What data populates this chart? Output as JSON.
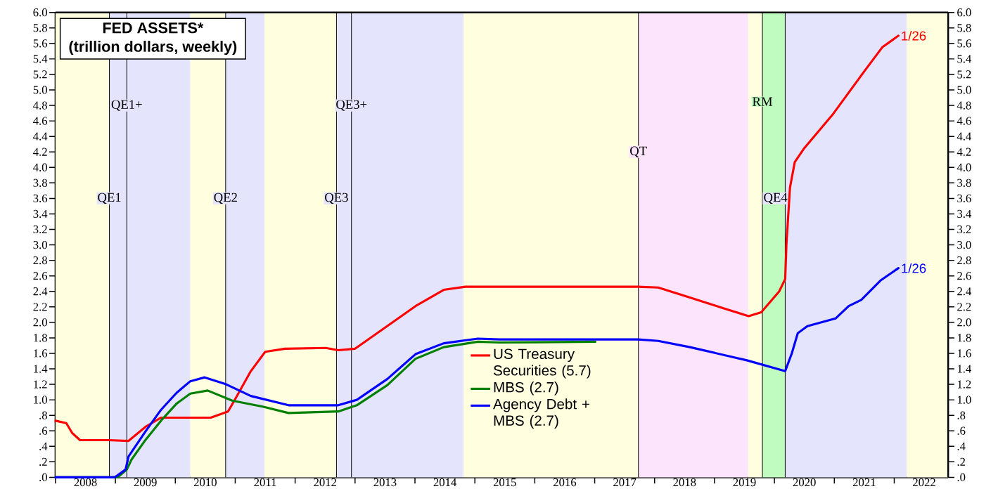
{
  "chart_data": {
    "type": "line",
    "title": "FED ASSETS*",
    "subtitle": "(trillion dollars, weekly)",
    "xlim": [
      2008,
      2022.9
    ],
    "xticks": [
      {
        "value": 2008,
        "label": null
      },
      {
        "value": 2008.5,
        "label": "2008"
      },
      {
        "value": 2009,
        "label": null
      },
      {
        "value": 2009.5,
        "label": "2009"
      },
      {
        "value": 2010,
        "label": null
      },
      {
        "value": 2010.5,
        "label": "2010"
      },
      {
        "value": 2011,
        "label": null
      },
      {
        "value": 2011.5,
        "label": "2011"
      },
      {
        "value": 2012,
        "label": null
      },
      {
        "value": 2012.5,
        "label": "2012"
      },
      {
        "value": 2013,
        "label": null
      },
      {
        "value": 2013.5,
        "label": "2013"
      },
      {
        "value": 2014,
        "label": null
      },
      {
        "value": 2014.5,
        "label": "2014"
      },
      {
        "value": 2015,
        "label": null
      },
      {
        "value": 2015.5,
        "label": "2015"
      },
      {
        "value": 2016,
        "label": null
      },
      {
        "value": 2016.5,
        "label": "2016"
      },
      {
        "value": 2017,
        "label": null
      },
      {
        "value": 2017.5,
        "label": "2017"
      },
      {
        "value": 2018,
        "label": null
      },
      {
        "value": 2018.5,
        "label": "2018"
      },
      {
        "value": 2019,
        "label": null
      },
      {
        "value": 2019.5,
        "label": "2019"
      },
      {
        "value": 2020,
        "label": null
      },
      {
        "value": 2020.5,
        "label": "2020"
      },
      {
        "value": 2021,
        "label": null
      },
      {
        "value": 2021.5,
        "label": "2021"
      },
      {
        "value": 2022,
        "label": null
      },
      {
        "value": 2022.5,
        "label": "2022"
      }
    ],
    "ylim": [
      0,
      6
    ],
    "yticks": [
      {
        "value": 0,
        "label": ".0"
      },
      {
        "value": 0.2,
        "label": ".2"
      },
      {
        "value": 0.4,
        "label": ".4"
      },
      {
        "value": 0.6,
        "label": ".6"
      },
      {
        "value": 0.8,
        "label": ".8"
      },
      {
        "value": 1.0,
        "label": "1.0"
      },
      {
        "value": 1.2,
        "label": "1.2"
      },
      {
        "value": 1.4,
        "label": "1.4"
      },
      {
        "value": 1.6,
        "label": "1.6"
      },
      {
        "value": 1.8,
        "label": "1.8"
      },
      {
        "value": 2.0,
        "label": "2.0"
      },
      {
        "value": 2.2,
        "label": "2.2"
      },
      {
        "value": 2.4,
        "label": "2.4"
      },
      {
        "value": 2.6,
        "label": "2.6"
      },
      {
        "value": 2.8,
        "label": "2.8"
      },
      {
        "value": 3.0,
        "label": "3.0"
      },
      {
        "value": 3.2,
        "label": "3.2"
      },
      {
        "value": 3.4,
        "label": "3.4"
      },
      {
        "value": 3.6,
        "label": "3.6"
      },
      {
        "value": 3.8,
        "label": "3.8"
      },
      {
        "value": 4.0,
        "label": "4.0"
      },
      {
        "value": 4.2,
        "label": "4.2"
      },
      {
        "value": 4.4,
        "label": "4.4"
      },
      {
        "value": 4.6,
        "label": "4.6"
      },
      {
        "value": 4.8,
        "label": "4.8"
      },
      {
        "value": 5.0,
        "label": "5.0"
      },
      {
        "value": 5.2,
        "label": "5.2"
      },
      {
        "value": 5.4,
        "label": "5.4"
      },
      {
        "value": 5.6,
        "label": "5.6"
      },
      {
        "value": 5.8,
        "label": "5.8"
      },
      {
        "value": 6.0,
        "label": "6.0"
      }
    ],
    "y2lim": [
      0,
      6
    ],
    "y2ticks": [
      {
        "value": 0,
        "label": ".0"
      },
      {
        "value": 0.2,
        "label": ".2"
      },
      {
        "value": 0.4,
        "label": ".4"
      },
      {
        "value": 0.6,
        "label": ".6"
      },
      {
        "value": 0.8,
        "label": ".8"
      },
      {
        "value": 1.0,
        "label": "1.0"
      },
      {
        "value": 1.2,
        "label": "1.2"
      },
      {
        "value": 1.4,
        "label": "1.4"
      },
      {
        "value": 1.6,
        "label": "1.6"
      },
      {
        "value": 1.8,
        "label": "1.8"
      },
      {
        "value": 2.0,
        "label": "2.0"
      },
      {
        "value": 2.2,
        "label": "2.2"
      },
      {
        "value": 2.4,
        "label": "2.4"
      },
      {
        "value": 2.6,
        "label": "2.6"
      },
      {
        "value": 2.8,
        "label": "2.8"
      },
      {
        "value": 3.0,
        "label": "3.0"
      },
      {
        "value": 3.2,
        "label": "3.2"
      },
      {
        "value": 3.4,
        "label": "3.4"
      },
      {
        "value": 3.6,
        "label": "3.6"
      },
      {
        "value": 3.8,
        "label": "3.8"
      },
      {
        "value": 4.0,
        "label": "4.0"
      },
      {
        "value": 4.2,
        "label": "4.2"
      },
      {
        "value": 4.4,
        "label": "4.4"
      },
      {
        "value": 4.6,
        "label": "4.6"
      },
      {
        "value": 4.8,
        "label": "4.8"
      },
      {
        "value": 5.0,
        "label": "5.0"
      },
      {
        "value": 5.2,
        "label": "5.2"
      },
      {
        "value": 5.4,
        "label": "5.4"
      },
      {
        "value": 5.6,
        "label": "5.6"
      },
      {
        "value": 5.8,
        "label": "5.8"
      },
      {
        "value": 6.0,
        "label": "6.0"
      }
    ],
    "grid": false,
    "legend": "bottom",
    "marker": "none",
    "line_style": "solid",
    "series": [
      {
        "name": "US Treasury Securities (5.7)",
        "color": "#ff0000",
        "x": [
          2008.0,
          2008.18,
          2008.28,
          2008.41,
          2008.88,
          2009.22,
          2009.5,
          2009.76,
          2010.59,
          2010.88,
          2011.0,
          2011.26,
          2011.5,
          2011.83,
          2012.51,
          2012.72,
          2013.0,
          2014.01,
          2014.48,
          2014.84,
          2017.72,
          2018.06,
          2018.59,
          2019.12,
          2019.57,
          2019.78,
          2020.08,
          2020.18,
          2020.2,
          2020.26,
          2020.34,
          2020.49,
          2020.98,
          2021.51,
          2021.8,
          2022.07
        ],
        "values": [
          0.73,
          0.7,
          0.57,
          0.48,
          0.48,
          0.47,
          0.65,
          0.77,
          0.77,
          0.85,
          1.01,
          1.37,
          1.62,
          1.66,
          1.67,
          1.64,
          1.66,
          2.21,
          2.42,
          2.46,
          2.46,
          2.45,
          2.32,
          2.19,
          2.08,
          2.13,
          2.4,
          2.56,
          3.0,
          3.74,
          4.07,
          4.24,
          4.69,
          5.25,
          5.55,
          5.7
        ]
      },
      {
        "name": "MBS (2.7)",
        "color": "#008000",
        "x": [
          2008.0,
          2009.04,
          2009.19,
          2009.27,
          2009.5,
          2009.76,
          2010.02,
          2010.25,
          2010.54,
          2010.95,
          2011.47,
          2011.89,
          2012.72,
          2013.03,
          2013.54,
          2014.01,
          2014.48,
          2015.05,
          2015.41,
          2017.01
        ],
        "values": [
          0,
          0,
          0.1,
          0.23,
          0.48,
          0.73,
          0.95,
          1.08,
          1.12,
          0.99,
          0.91,
          0.83,
          0.85,
          0.93,
          1.19,
          1.53,
          1.68,
          1.75,
          1.74,
          1.75
        ]
      },
      {
        "name": "Agency Debt + MBS (2.7)",
        "color": "#0000ff",
        "x": [
          2008.0,
          2008.99,
          2009.17,
          2009.22,
          2009.5,
          2009.76,
          2010.02,
          2010.25,
          2010.49,
          2010.85,
          2011.26,
          2011.89,
          2012.72,
          2013.03,
          2013.54,
          2014.01,
          2014.48,
          2015.05,
          2015.41,
          2017.72,
          2018.06,
          2018.59,
          2019.54,
          2020.18,
          2020.29,
          2020.39,
          2020.55,
          2021.02,
          2021.24,
          2021.45,
          2021.77,
          2022.07
        ],
        "values": [
          0,
          0,
          0.1,
          0.27,
          0.59,
          0.87,
          1.09,
          1.24,
          1.29,
          1.2,
          1.05,
          0.93,
          0.93,
          1.0,
          1.27,
          1.59,
          1.73,
          1.79,
          1.78,
          1.78,
          1.76,
          1.68,
          1.51,
          1.37,
          1.6,
          1.86,
          1.95,
          2.05,
          2.21,
          2.29,
          2.54,
          2.7
        ]
      }
    ],
    "bands": [
      {
        "axis": "x",
        "from": 2008.0,
        "to": 2008.9,
        "color": "#ffffe0"
      },
      {
        "axis": "x",
        "from": 2008.9,
        "to": 2010.25,
        "color": "#e4e4fc"
      },
      {
        "axis": "x",
        "from": 2010.25,
        "to": 2010.84,
        "color": "#ffffe0"
      },
      {
        "axis": "x",
        "from": 2010.84,
        "to": 2011.49,
        "color": "#e4e4fc"
      },
      {
        "axis": "x",
        "from": 2011.49,
        "to": 2012.69,
        "color": "#ffffe0"
      },
      {
        "axis": "x",
        "from": 2012.69,
        "to": 2014.81,
        "color": "#e4e4fc"
      },
      {
        "axis": "x",
        "from": 2014.81,
        "to": 2017.73,
        "color": "#ffffe0"
      },
      {
        "axis": "x",
        "from": 2017.73,
        "to": 2019.56,
        "color": "#fce4fc"
      },
      {
        "axis": "x",
        "from": 2019.56,
        "to": 2019.8,
        "color": "#ffffe0"
      },
      {
        "axis": "x",
        "from": 2019.8,
        "to": 2020.18,
        "color": "#c0fcc0"
      },
      {
        "axis": "x",
        "from": 2020.18,
        "to": 2022.21,
        "color": "#e4e4fc"
      },
      {
        "axis": "x",
        "from": 2022.21,
        "to": 2022.9,
        "color": "#ffffe0"
      }
    ],
    "ref_lines": [
      {
        "axis": "x",
        "value": 2008.9,
        "label": "QE1",
        "color": "#000000"
      },
      {
        "axis": "x",
        "value": 2009.19,
        "label": "QE1+",
        "color": "#000000"
      },
      {
        "axis": "x",
        "value": 2010.84,
        "label": "QE2",
        "color": "#000000"
      },
      {
        "axis": "x",
        "value": 2012.69,
        "label": "QE3",
        "color": "#000000"
      },
      {
        "axis": "x",
        "value": 2012.94,
        "label": "QE3+",
        "color": "#000000"
      },
      {
        "axis": "x",
        "value": 2017.73,
        "label": "QT",
        "color": "#000000"
      },
      {
        "axis": "x",
        "value": 2019.8,
        "label": "RM",
        "color": "#000000"
      },
      {
        "axis": "x",
        "value": 2020.18,
        "label": "QE4",
        "color": "#000000"
      }
    ],
    "annotations": [
      {
        "text": "1/26",
        "x": 2022.07,
        "y": 5.7
      },
      {
        "text": "1/26",
        "x": 2022.07,
        "y": 2.7
      }
    ]
  }
}
